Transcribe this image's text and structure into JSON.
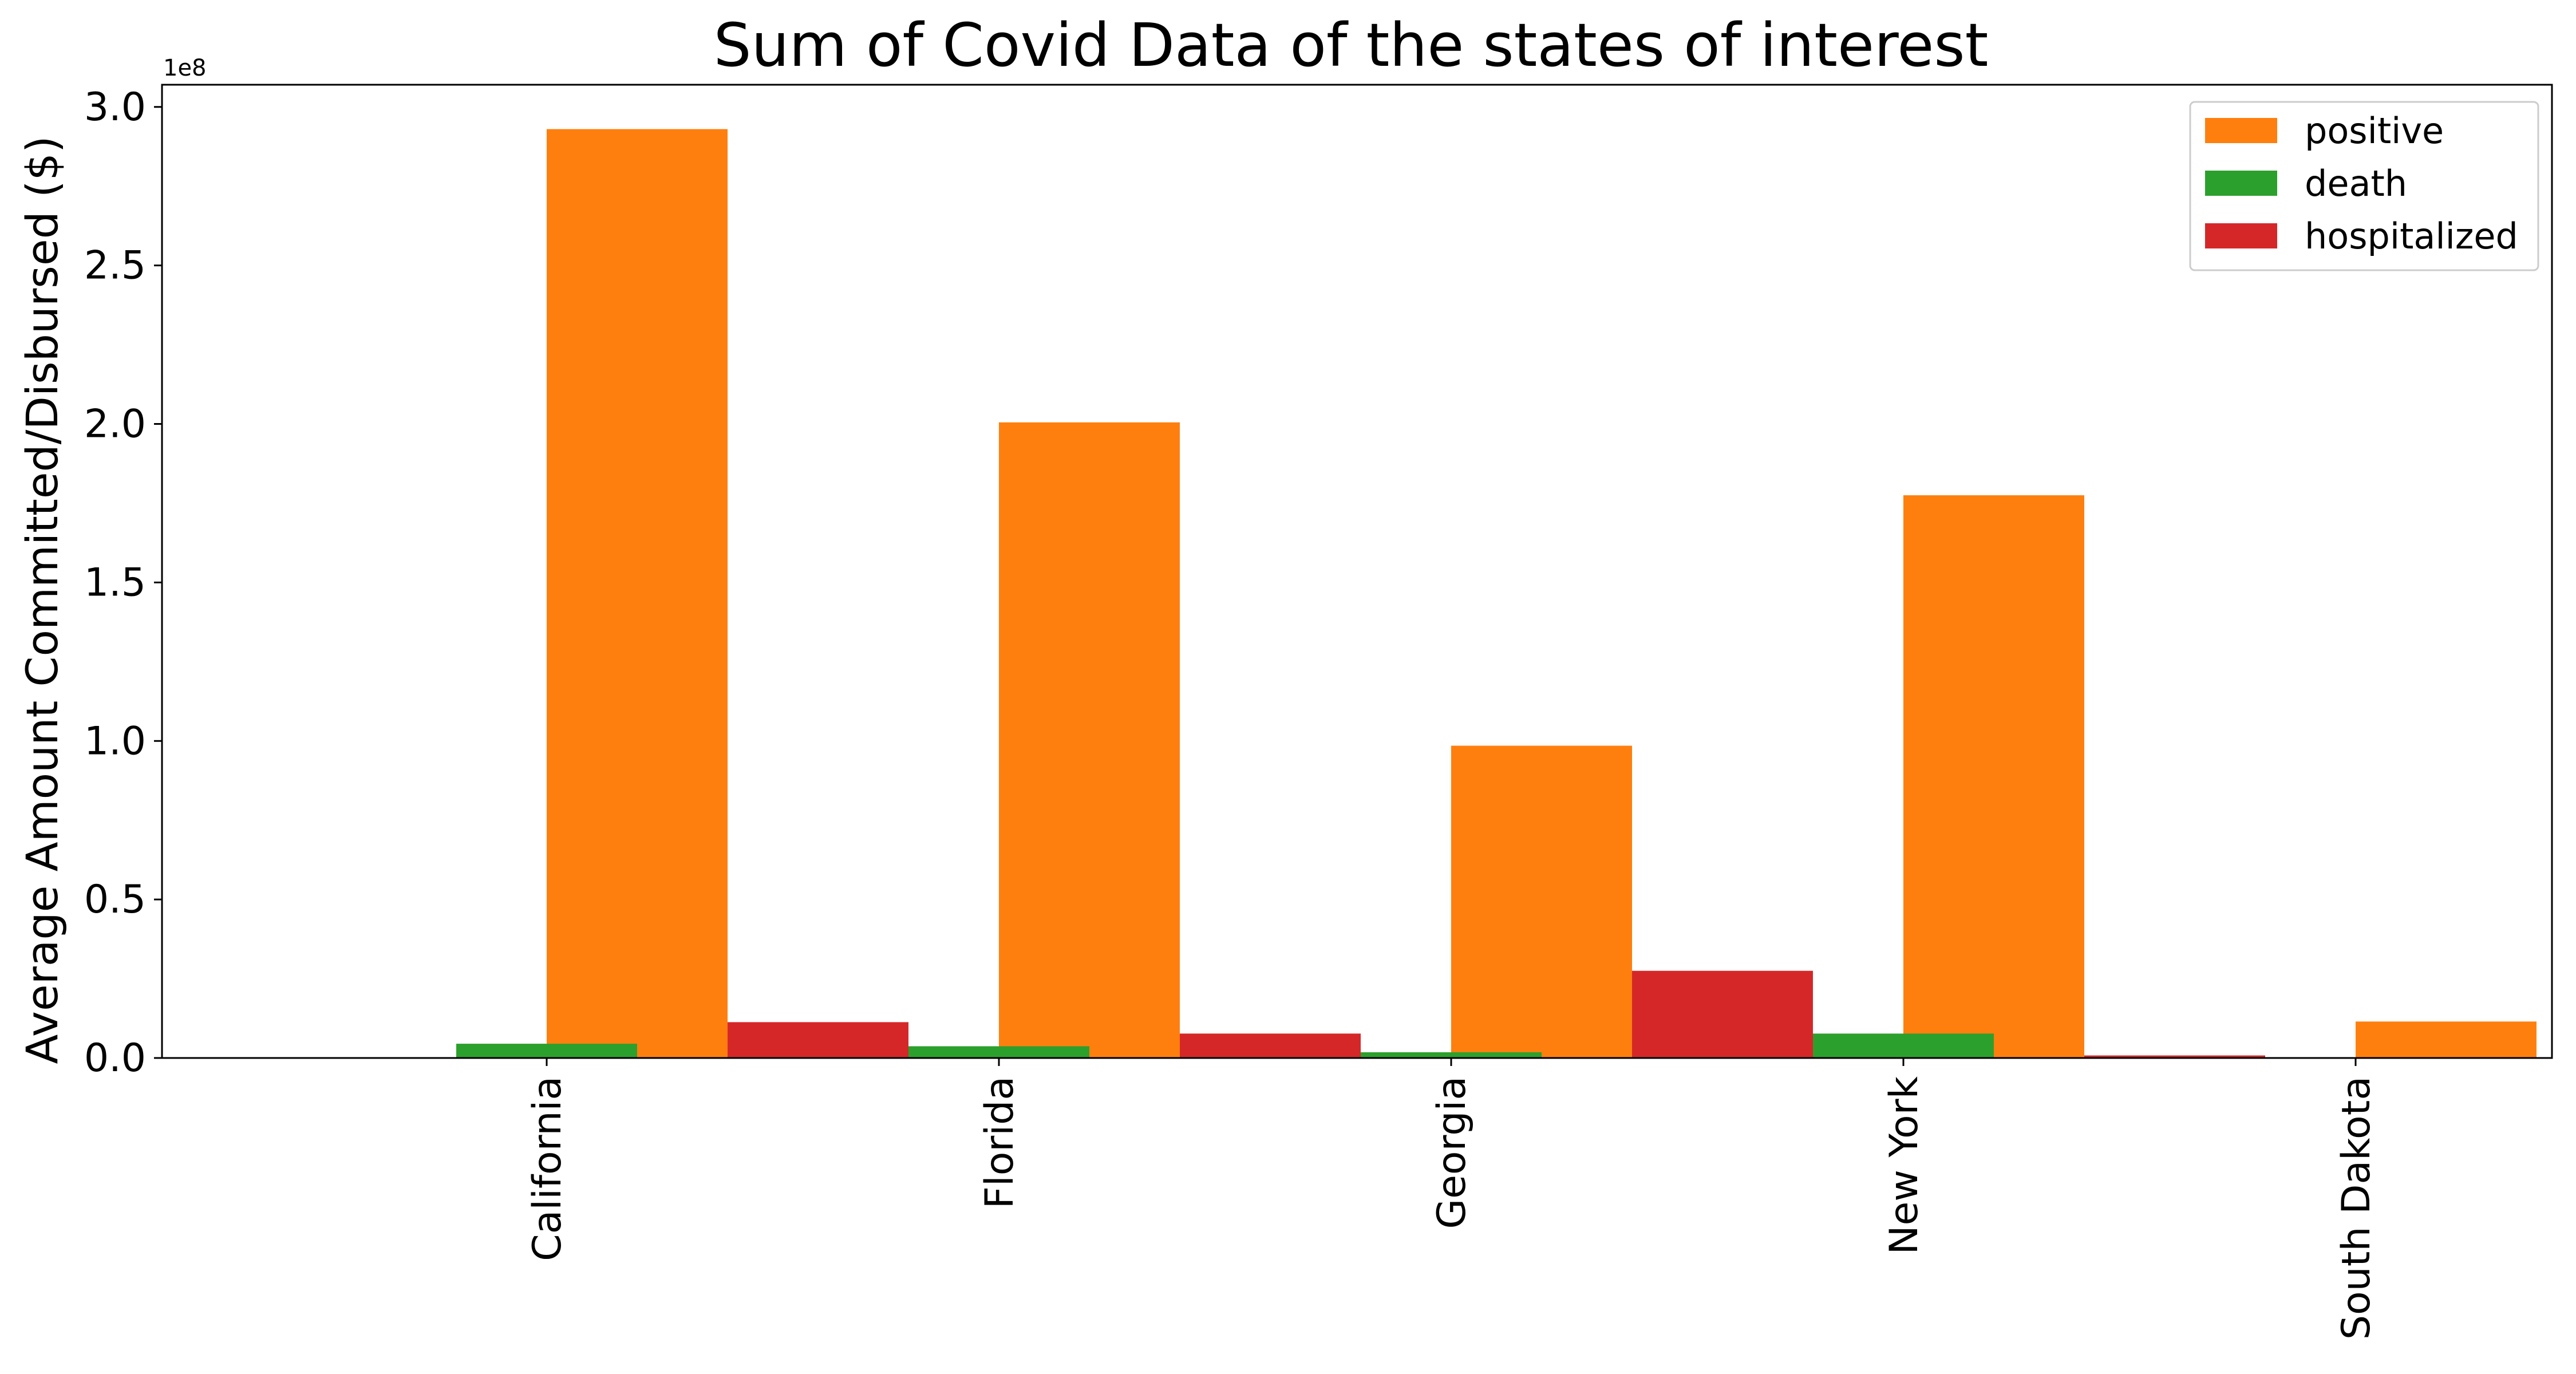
{
  "chart_data": {
    "type": "bar",
    "title": "Sum of Covid Data of the states of interest",
    "xlabel": "",
    "ylabel": "Average Amount Committed/Disbursed ($)",
    "y_offset_label": "1e8",
    "y_scale_factor": 100000000,
    "ylim": [
      0,
      3.07
    ],
    "yticks": [
      0.0,
      0.5,
      1.0,
      1.5,
      2.0,
      2.5,
      3.0
    ],
    "ytick_labels": [
      "0.0",
      "0.5",
      "1.0",
      "1.5",
      "2.0",
      "2.5",
      "3.0"
    ],
    "categories": [
      "California",
      "Florida",
      "Georgia",
      "New York",
      "South Dakota"
    ],
    "legend_position": "top-right",
    "grid": false,
    "series": [
      {
        "name": "positive",
        "color": "#ff7f0e",
        "values": [
          2.93,
          2.005,
          0.985,
          1.775,
          0.115
        ]
      },
      {
        "name": "death",
        "color": "#2ca02c",
        "values": [
          0.045,
          0.037,
          0.018,
          0.077,
          0.0
        ]
      },
      {
        "name": "hospitalized",
        "color": "#d62728",
        "values": [
          0.0,
          0.113,
          0.077,
          0.275,
          0.008
        ]
      }
    ]
  }
}
